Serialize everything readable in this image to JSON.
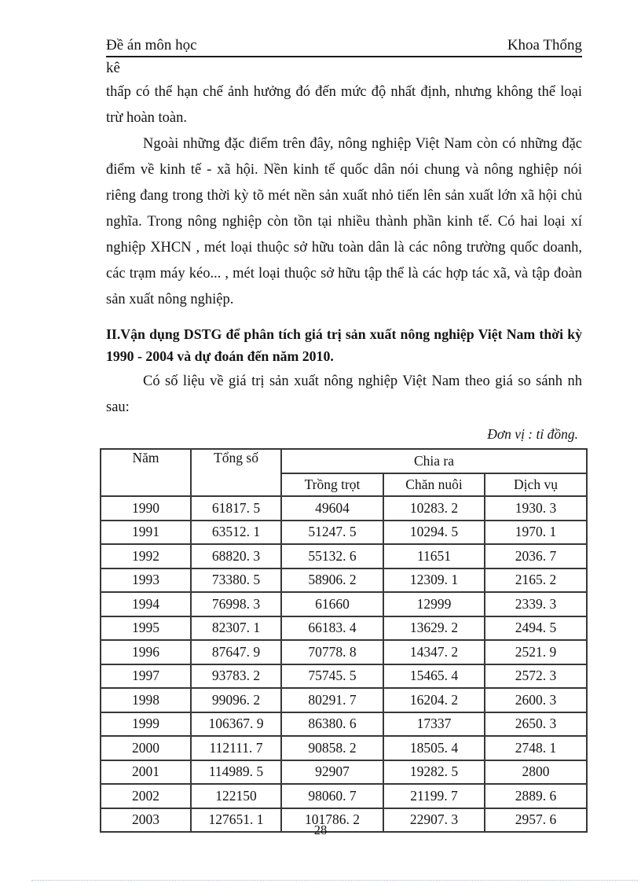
{
  "header": {
    "course_label": "Đề án môn học",
    "faculty_label": "Khoa Thống",
    "faculty_wrap": "kê"
  },
  "body": {
    "paragraph_1": "thấp có thể hạn chế ảnh hưởng đó đến mức độ nhất định, nhưng không thể loại trừ hoàn toàn.",
    "paragraph_2": "Ngoài những đặc điểm trên đây, nông nghiệp Việt Nam còn có những đặc điểm về kinh tế - xã hội. Nền kinh tế quốc dân nói chung và nông nghiệp nói riêng đang trong thời kỳ tõ mét nền sản xuất nhỏ tiến lên sản xuất lớn xã hội chủ nghĩa. Trong nông nghiệp còn tồn tại nhiều thành phần kinh tế. Có hai loại xí nghiệp XHCN , mét loại thuộc sở hữu toàn dân là các nông trường quốc doanh, các trạm máy kéo... , mét loại thuộc sở hữu tập thể là các hợp tác xã, và tập đoàn sản xuất nông nghiệp.",
    "section_heading": "II.Vận dụng DSTG để phân tích giá trị sản xuất nông nghiệp Việt Nam thời kỳ 1990 - 2004 và dự đoán đến năm 2010.",
    "intro_paragraph": "Có số liệu về giá trị sản xuất nông nghiệp Việt Nam theo giá so sánh nh sau:",
    "unit_note": "Đơn vị : tỉ đồng."
  },
  "table": {
    "columns": {
      "year": "Năm",
      "total": "Tổng số",
      "group": "Chia ra",
      "sub": [
        "Trồng trọt",
        "Chăn nuôi",
        "Dịch vụ"
      ]
    },
    "rows": [
      [
        "1990",
        "61817. 5",
        "49604",
        "10283. 2",
        "1930. 3"
      ],
      [
        "1991",
        "63512. 1",
        "51247. 5",
        "10294. 5",
        "1970. 1"
      ],
      [
        "1992",
        "68820. 3",
        "55132. 6",
        "11651",
        "2036. 7"
      ],
      [
        "1993",
        "73380. 5",
        "58906. 2",
        "12309. 1",
        "2165. 2"
      ],
      [
        "1994",
        "76998. 3",
        "61660",
        "12999",
        "2339. 3"
      ],
      [
        "1995",
        "82307. 1",
        "66183. 4",
        "13629. 2",
        "2494. 5"
      ],
      [
        "1996",
        "87647. 9",
        "70778. 8",
        "14347. 2",
        "2521. 9"
      ],
      [
        "1997",
        "93783. 2",
        "75745. 5",
        "15465. 4",
        "2572. 3"
      ],
      [
        "1998",
        "99096. 2",
        "80291. 7",
        "16204. 2",
        "2600. 3"
      ],
      [
        "1999",
        "106367. 9",
        "86380. 6",
        "17337",
        "2650. 3"
      ],
      [
        "2000",
        "112111. 7",
        "90858. 2",
        "18505. 4",
        "2748. 1"
      ],
      [
        "2001",
        "114989. 5",
        "92907",
        "19282. 5",
        "2800"
      ],
      [
        "2002",
        "122150",
        "98060. 7",
        "21199. 7",
        "2889. 6"
      ],
      [
        "2003",
        "127651. 1",
        "101786. 2",
        "22907. 3",
        "2957. 6"
      ]
    ]
  },
  "footer": {
    "page_number": "28"
  }
}
